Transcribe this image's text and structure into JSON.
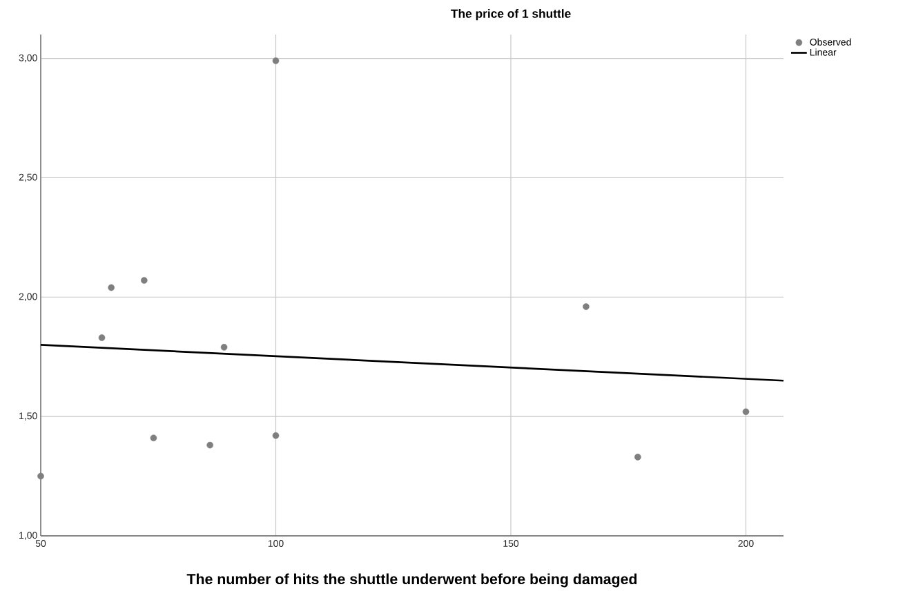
{
  "chart_data": {
    "type": "scatter",
    "title": "The price of 1 shuttle",
    "xlabel": "The number of hits the shuttle underwent before being damaged",
    "series": [
      {
        "name": "Observed",
        "marker": "circle",
        "color": "#7f7f7f",
        "x": [
          50,
          63,
          65,
          72,
          74,
          86,
          89,
          100,
          100,
          166,
          177,
          200
        ],
        "values": [
          1.25,
          1.83,
          2.04,
          2.07,
          1.41,
          1.38,
          1.79,
          1.42,
          2.99,
          1.96,
          1.33,
          1.52
        ]
      },
      {
        "name": "Linear",
        "type": "line",
        "marker": "none",
        "color": "#000000",
        "x": [
          50,
          208
        ],
        "values": [
          1.8,
          1.65
        ]
      }
    ],
    "xlim": [
      50,
      208
    ],
    "ylim": [
      1,
      3.1
    ],
    "xticks": [
      50,
      100,
      150,
      200
    ],
    "yticks": [
      {
        "value": 1,
        "label": "1,00"
      },
      {
        "value": 1.5,
        "label": "1,50"
      },
      {
        "value": 2,
        "label": "2,00"
      },
      {
        "value": 2.5,
        "label": "2,50"
      },
      {
        "value": 3,
        "label": "3,00"
      }
    ],
    "grid": true,
    "legend": "top right"
  }
}
